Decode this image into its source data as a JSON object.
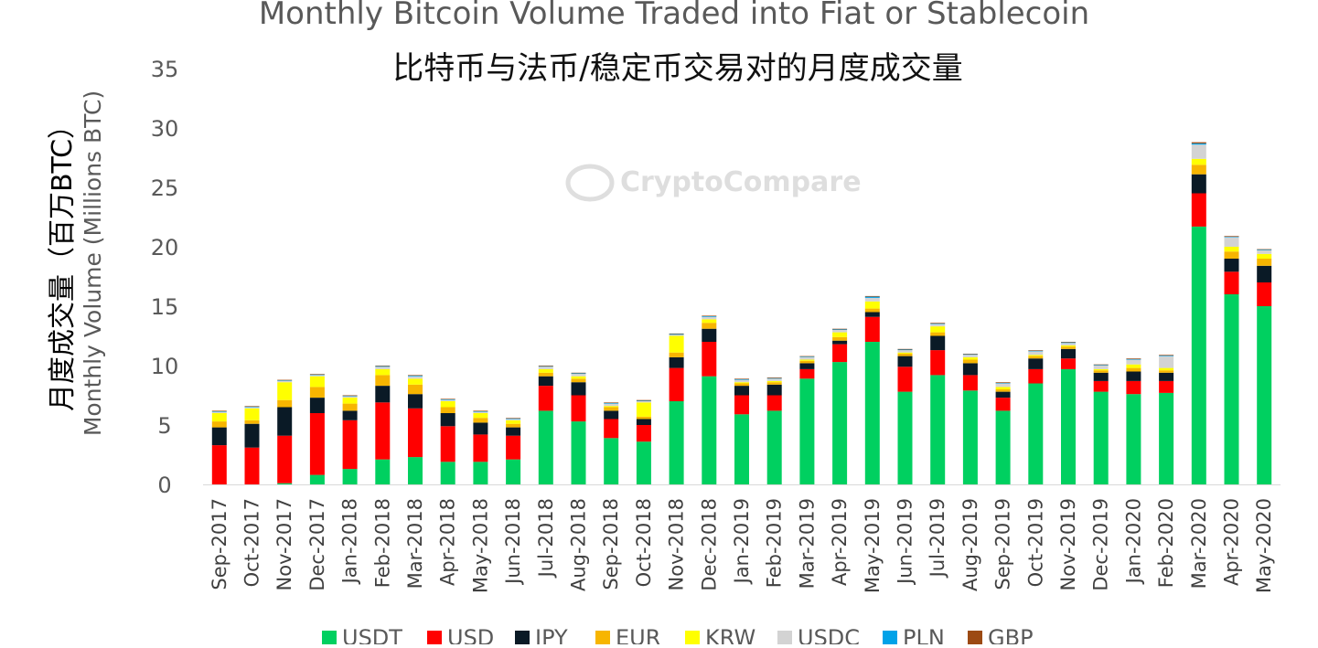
{
  "colors": {
    "USDT": "#00d060",
    "USD": "#ff0000",
    "JPY": "#0a1a26",
    "EUR": "#f7b500",
    "KRW": "#ffff00",
    "USDC": "#d3d3d3",
    "PLN": "#00a2e8",
    "GBP": "#9c4a13"
  },
  "chart_data": {
    "type": "bar",
    "stacked": true,
    "title": "Monthly Bitcoin Volume Traded into Fiat or Stablecoin",
    "subtitle": "比特币与法币/稳定币交易对的月度成交量",
    "ylabel_cn": "月度成交量（百万BTC）",
    "ylabel": "Monthly Volume (Millions BTC)",
    "xlabel": "",
    "watermark": "CryptoCompare",
    "ylim": [
      0,
      35
    ],
    "yticks": [
      0,
      5,
      10,
      15,
      20,
      25,
      30,
      35
    ],
    "grid": false,
    "legend_position": "bottom",
    "categories": [
      "Sep-2017",
      "Oct-2017",
      "Nov-2017",
      "Dec-2017",
      "Jan-2018",
      "Feb-2018",
      "Mar-2018",
      "Apr-2018",
      "May-2018",
      "Jun-2018",
      "Jul-2018",
      "Aug-2018",
      "Sep-2018",
      "Oct-2018",
      "Nov-2018",
      "Dec-2018",
      "Jan-2019",
      "Feb-2019",
      "Mar-2019",
      "Apr-2019",
      "May-2019",
      "Jun-2019",
      "Jul-2019",
      "Aug-2019",
      "Sep-2019",
      "Oct-2019",
      "Nov-2019",
      "Dec-2019",
      "Jan-2020",
      "Feb-2020",
      "Mar-2020",
      "Apr-2020",
      "May-2020"
    ],
    "series": [
      {
        "name": "USDT",
        "values": [
          0,
          0,
          0.1,
          0.8,
          1.3,
          2.1,
          2.3,
          1.9,
          1.9,
          2.1,
          6.2,
          5.3,
          3.9,
          3.6,
          7.0,
          9.1,
          5.9,
          6.2,
          8.9,
          10.3,
          12.0,
          7.8,
          9.2,
          7.9,
          6.2,
          8.5,
          9.7,
          7.8,
          7.6,
          7.7,
          21.7,
          16.0,
          15.0
        ]
      },
      {
        "name": "USD",
        "values": [
          3.3,
          3.1,
          4.0,
          5.2,
          4.1,
          4.8,
          4.1,
          3.0,
          2.3,
          2.0,
          2.1,
          2.2,
          1.6,
          1.4,
          2.8,
          2.9,
          1.6,
          1.3,
          0.8,
          1.5,
          2.1,
          2.1,
          2.1,
          1.3,
          1.1,
          1.2,
          0.9,
          0.9,
          1.1,
          1.0,
          2.8,
          1.9,
          2.0
        ]
      },
      {
        "name": "JPY",
        "values": [
          1.5,
          2.0,
          2.4,
          1.3,
          0.8,
          1.4,
          1.2,
          1.1,
          1.0,
          0.7,
          0.8,
          1.1,
          0.7,
          0.5,
          0.9,
          1.1,
          0.8,
          0.9,
          0.5,
          0.3,
          0.4,
          0.9,
          1.2,
          1.0,
          0.5,
          0.9,
          0.8,
          0.7,
          0.8,
          0.7,
          1.6,
          1.1,
          1.4
        ]
      },
      {
        "name": "EUR",
        "values": [
          0.5,
          0.3,
          0.6,
          0.9,
          0.6,
          0.9,
          0.8,
          0.5,
          0.4,
          0.3,
          0.3,
          0.3,
          0.3,
          0.2,
          0.4,
          0.5,
          0.2,
          0.2,
          0.2,
          0.3,
          0.3,
          0.2,
          0.3,
          0.3,
          0.2,
          0.2,
          0.2,
          0.2,
          0.3,
          0.2,
          0.8,
          0.6,
          0.6
        ]
      },
      {
        "name": "KRW",
        "values": [
          0.7,
          1.0,
          1.5,
          0.9,
          0.5,
          0.5,
          0.5,
          0.5,
          0.4,
          0.3,
          0.3,
          0.2,
          0.1,
          1.2,
          1.4,
          0.3,
          0.1,
          0.1,
          0.1,
          0.4,
          0.6,
          0.1,
          0.5,
          0.2,
          0.2,
          0.1,
          0.1,
          0.1,
          0.3,
          0.2,
          0.5,
          0.4,
          0.4
        ]
      },
      {
        "name": "USDC",
        "values": [
          0.1,
          0.1,
          0.1,
          0.1,
          0.1,
          0.2,
          0.2,
          0.1,
          0.1,
          0.1,
          0.2,
          0.2,
          0.2,
          0.1,
          0.1,
          0.2,
          0.2,
          0.2,
          0.2,
          0.2,
          0.3,
          0.2,
          0.2,
          0.2,
          0.3,
          0.3,
          0.2,
          0.3,
          0.4,
          1.0,
          1.2,
          0.8,
          0.3
        ]
      },
      {
        "name": "PLN",
        "values": [
          0.05,
          0.05,
          0.05,
          0.05,
          0.05,
          0.05,
          0.05,
          0.05,
          0.05,
          0.05,
          0.05,
          0.05,
          0.05,
          0.05,
          0.05,
          0.05,
          0.05,
          0.05,
          0.05,
          0.05,
          0.1,
          0.05,
          0.05,
          0.05,
          0.05,
          0.05,
          0.05,
          0.05,
          0.05,
          0.05,
          0.1,
          0.05,
          0.05
        ]
      },
      {
        "name": "GBP",
        "values": [
          0.05,
          0.05,
          0.05,
          0.05,
          0.05,
          0.05,
          0.05,
          0.05,
          0.05,
          0.05,
          0.05,
          0.05,
          0.05,
          0.05,
          0.05,
          0.05,
          0.05,
          0.05,
          0.05,
          0.05,
          0.05,
          0.05,
          0.05,
          0.05,
          0.05,
          0.05,
          0.05,
          0.05,
          0.05,
          0.05,
          0.1,
          0.05,
          0.05
        ]
      }
    ]
  }
}
